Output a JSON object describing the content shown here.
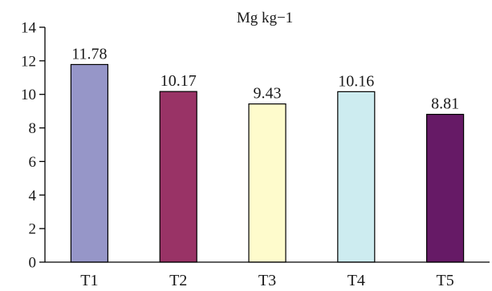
{
  "chart_data": {
    "type": "bar",
    "title": "",
    "unit_label": "Mg kg−1",
    "xlabel": "",
    "ylabel": "",
    "categories": [
      "T1",
      "T2",
      "T3",
      "T4",
      "T5"
    ],
    "values": [
      11.78,
      10.17,
      9.43,
      10.16,
      8.81
    ],
    "value_labels": [
      "11.78",
      "10.17",
      "9.43",
      "10.16",
      "8.81"
    ],
    "colors": [
      "#9696c8",
      "#993366",
      "#fefbcc",
      "#cdecf0",
      "#661a66"
    ],
    "ylim": [
      0,
      14
    ],
    "yticks": [
      0,
      2,
      4,
      6,
      8,
      10,
      12,
      14
    ],
    "grid": false,
    "legend": "none"
  }
}
